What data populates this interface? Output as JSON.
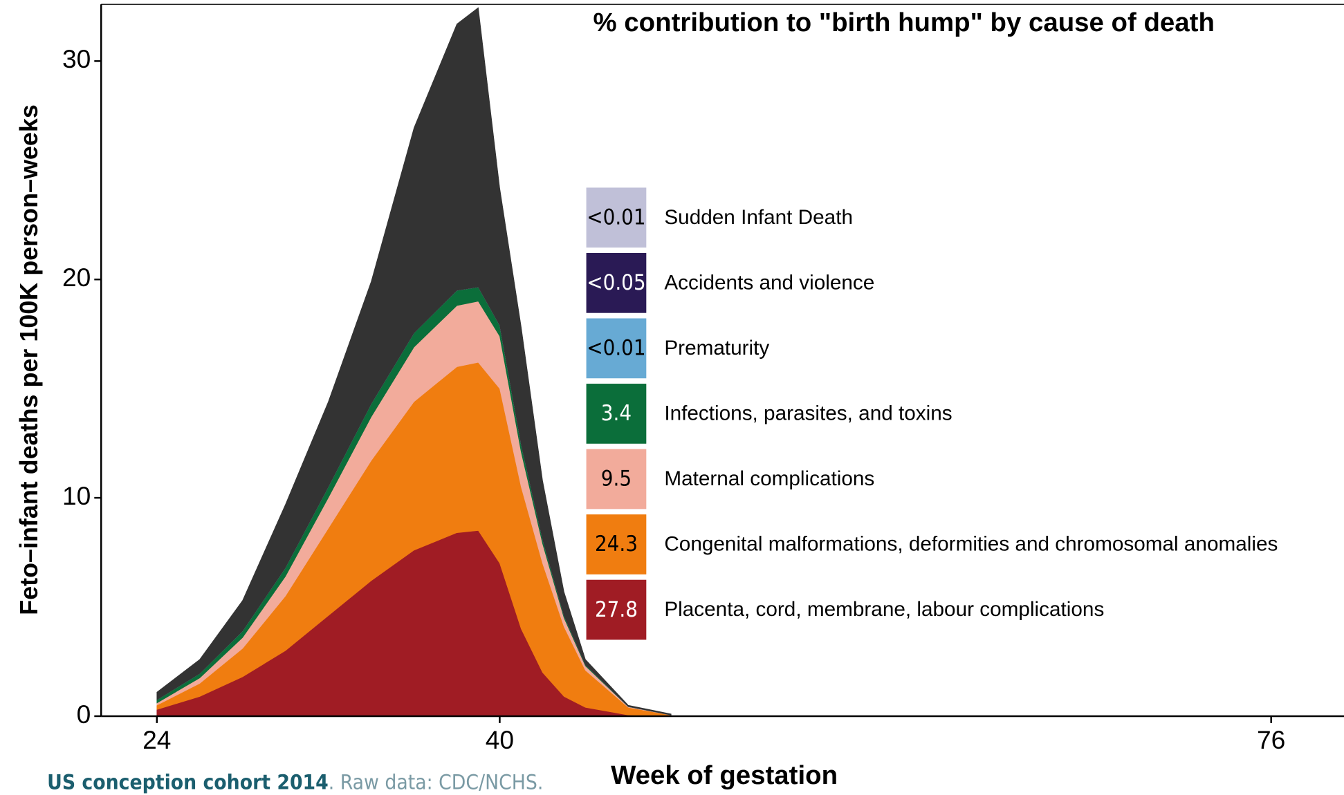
{
  "chart_data": {
    "type": "stacked-area",
    "title": "% contribution to \"birth hump\" by cause of death",
    "x_label": "Week of gestation",
    "y_label": "Feto–infant deaths per 100K person–weeks",
    "source": {
      "cohort": "US conception cohort 2014",
      "text": ". Raw data: CDC/NCHS."
    },
    "xlim": [
      21.4,
      79.4
    ],
    "ylim": [
      0,
      32.6
    ],
    "xticks": [
      24,
      40,
      76
    ],
    "yticks": [
      0,
      10,
      20,
      30
    ],
    "x": [
      24,
      26,
      28,
      30,
      32,
      34,
      36,
      38,
      39,
      40,
      41,
      42,
      43,
      44,
      46,
      48
    ],
    "series": [
      {
        "name": "Placenta, cord, membrane, labour complications",
        "color": "#a01c24",
        "contribution": 27.8,
        "values": [
          0.3,
          0.9,
          1.8,
          3.0,
          4.6,
          6.2,
          7.6,
          8.4,
          8.5,
          7.0,
          4.0,
          2.0,
          0.9,
          0.4,
          0.05,
          0
        ]
      },
      {
        "name": "Congenital malformations, deformities and chromosomal anomalies",
        "color": "#f07d10",
        "contribution": 24.3,
        "values": [
          0.2,
          0.6,
          1.3,
          2.5,
          4.0,
          5.5,
          6.8,
          7.6,
          7.7,
          8.0,
          6.5,
          5.0,
          3.2,
          1.7,
          0.35,
          0.05
        ]
      },
      {
        "name": "Maternal complications",
        "color": "#f2ab9b",
        "contribution": 9.5,
        "values": [
          0.1,
          0.25,
          0.5,
          0.9,
          1.4,
          2.0,
          2.5,
          2.8,
          2.8,
          2.4,
          1.6,
          0.9,
          0.4,
          0.2,
          0.03,
          0
        ]
      },
      {
        "name": "Infections, parasites, and toxins",
        "color": "#0b6e3a",
        "contribution": 3.4,
        "values": [
          0.15,
          0.2,
          0.3,
          0.4,
          0.5,
          0.6,
          0.65,
          0.7,
          0.65,
          0.5,
          0.35,
          0.2,
          0.1,
          0.05,
          0.01,
          0
        ]
      },
      {
        "name": "Prematurity",
        "color": "#67aad4",
        "contribution": "<0.01",
        "values": [
          0,
          0,
          0,
          0,
          0,
          0,
          0,
          0,
          0,
          0,
          0,
          0,
          0,
          0,
          0,
          0
        ]
      },
      {
        "name": "Accidents and violence",
        "color": "#2a1a55",
        "contribution": "<0.05",
        "values": [
          0,
          0,
          0,
          0,
          0,
          0,
          0,
          0,
          0,
          0,
          0,
          0,
          0,
          0,
          0,
          0
        ]
      },
      {
        "name": "Sudden Infant Death",
        "color": "#c0c0d8",
        "contribution": "<0.01",
        "values": [
          0,
          0,
          0,
          0,
          0,
          0,
          0,
          0,
          0,
          0,
          0,
          0,
          0,
          0,
          0,
          0
        ]
      },
      {
        "color": "#333333",
        "values": [
          0.35,
          0.65,
          1.4,
          2.9,
          3.9,
          5.6,
          9.4,
          12.2,
          12.8,
          6.3,
          5.4,
          2.7,
          1.1,
          0.25,
          0.06,
          0.05
        ]
      }
    ]
  }
}
